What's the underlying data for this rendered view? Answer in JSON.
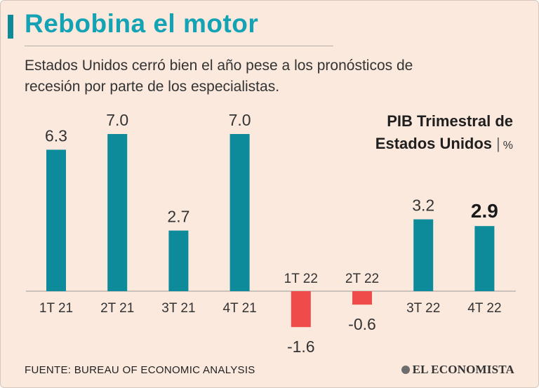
{
  "header": {
    "title": "Rebobina el motor",
    "subtitle": "Estados Unidos cerró bien el año pese a los pronósticos de recesión por parte de los especialistas."
  },
  "chart_heading": {
    "line1": "PIB Trimestral de",
    "line2": "Estados Unidos",
    "separator": "|",
    "unit": "%"
  },
  "footer": {
    "source": "FUENTE: BUREAU OF ECONOMIC ANALYSIS",
    "brand": "EL ECONOMISTA"
  },
  "colors": {
    "positive": "#0e8b9b",
    "negative": "#ef4b4b",
    "title": "#13a3b4",
    "background": "#fbe9de"
  },
  "chart_data": {
    "type": "bar",
    "title": "PIB Trimestral de Estados Unidos",
    "unit": "%",
    "categories": [
      "1T 21",
      "2T 21",
      "3T 21",
      "4T 21",
      "1T 22",
      "2T 22",
      "3T 22",
      "4T 22"
    ],
    "values": [
      6.3,
      7.0,
      2.7,
      7.0,
      -1.6,
      -0.6,
      3.2,
      2.9
    ],
    "value_labels": [
      "6.3",
      "7.0",
      "2.7",
      "7.0",
      "-1.6",
      "-0.6",
      "3.2",
      "2.9"
    ],
    "highlight_last": true,
    "ylim": [
      -1.6,
      7.0
    ],
    "grid": false,
    "legend": "none"
  }
}
